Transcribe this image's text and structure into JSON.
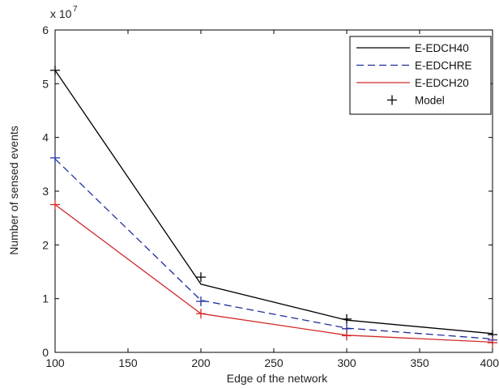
{
  "chart_data": {
    "type": "line",
    "xlabel": "Edge of the network",
    "ylabel": "Number of sensed events",
    "y_multiplier_label": "x 10",
    "y_multiplier_exponent": "7",
    "x_ticks": [
      "100",
      "150",
      "200",
      "250",
      "300",
      "350",
      "400"
    ],
    "y_ticks": [
      "0",
      "1",
      "2",
      "3",
      "4",
      "5",
      "6"
    ],
    "xlim": [
      100,
      400
    ],
    "ylim": [
      0,
      6
    ],
    "grid": false,
    "legend_position": "top-right",
    "x": [
      100,
      200,
      300,
      400
    ],
    "series": [
      {
        "name": "E-EDCH40",
        "values": [
          5.25,
          1.27,
          0.6,
          0.35
        ],
        "color": "#000000",
        "style": "solid"
      },
      {
        "name": "E-EDCHRE",
        "values": [
          3.6,
          0.97,
          0.45,
          0.25
        ],
        "color": "#1f2f9a",
        "style": "dashed"
      },
      {
        "name": "E-EDCH20",
        "values": [
          2.75,
          0.72,
          0.32,
          0.19
        ],
        "color": "#d22a2a",
        "style": "solid"
      }
    ],
    "model": {
      "name": "Model",
      "marker": "+",
      "points": [
        {
          "x": 100,
          "y": 5.25,
          "color": "#000000"
        },
        {
          "x": 200,
          "y": 1.4,
          "color": "#000000"
        },
        {
          "x": 300,
          "y": 0.62,
          "color": "#000000"
        },
        {
          "x": 400,
          "y": 0.33,
          "color": "#000000"
        },
        {
          "x": 100,
          "y": 3.62,
          "color": "#1f2f9a"
        },
        {
          "x": 200,
          "y": 0.95,
          "color": "#1f2f9a"
        },
        {
          "x": 300,
          "y": 0.44,
          "color": "#1f2f9a"
        },
        {
          "x": 400,
          "y": 0.23,
          "color": "#1f2f9a"
        },
        {
          "x": 100,
          "y": 2.75,
          "color": "#d22a2a"
        },
        {
          "x": 200,
          "y": 0.72,
          "color": "#d22a2a"
        },
        {
          "x": 300,
          "y": 0.31,
          "color": "#d22a2a"
        },
        {
          "x": 400,
          "y": 0.18,
          "color": "#d22a2a"
        }
      ]
    }
  }
}
